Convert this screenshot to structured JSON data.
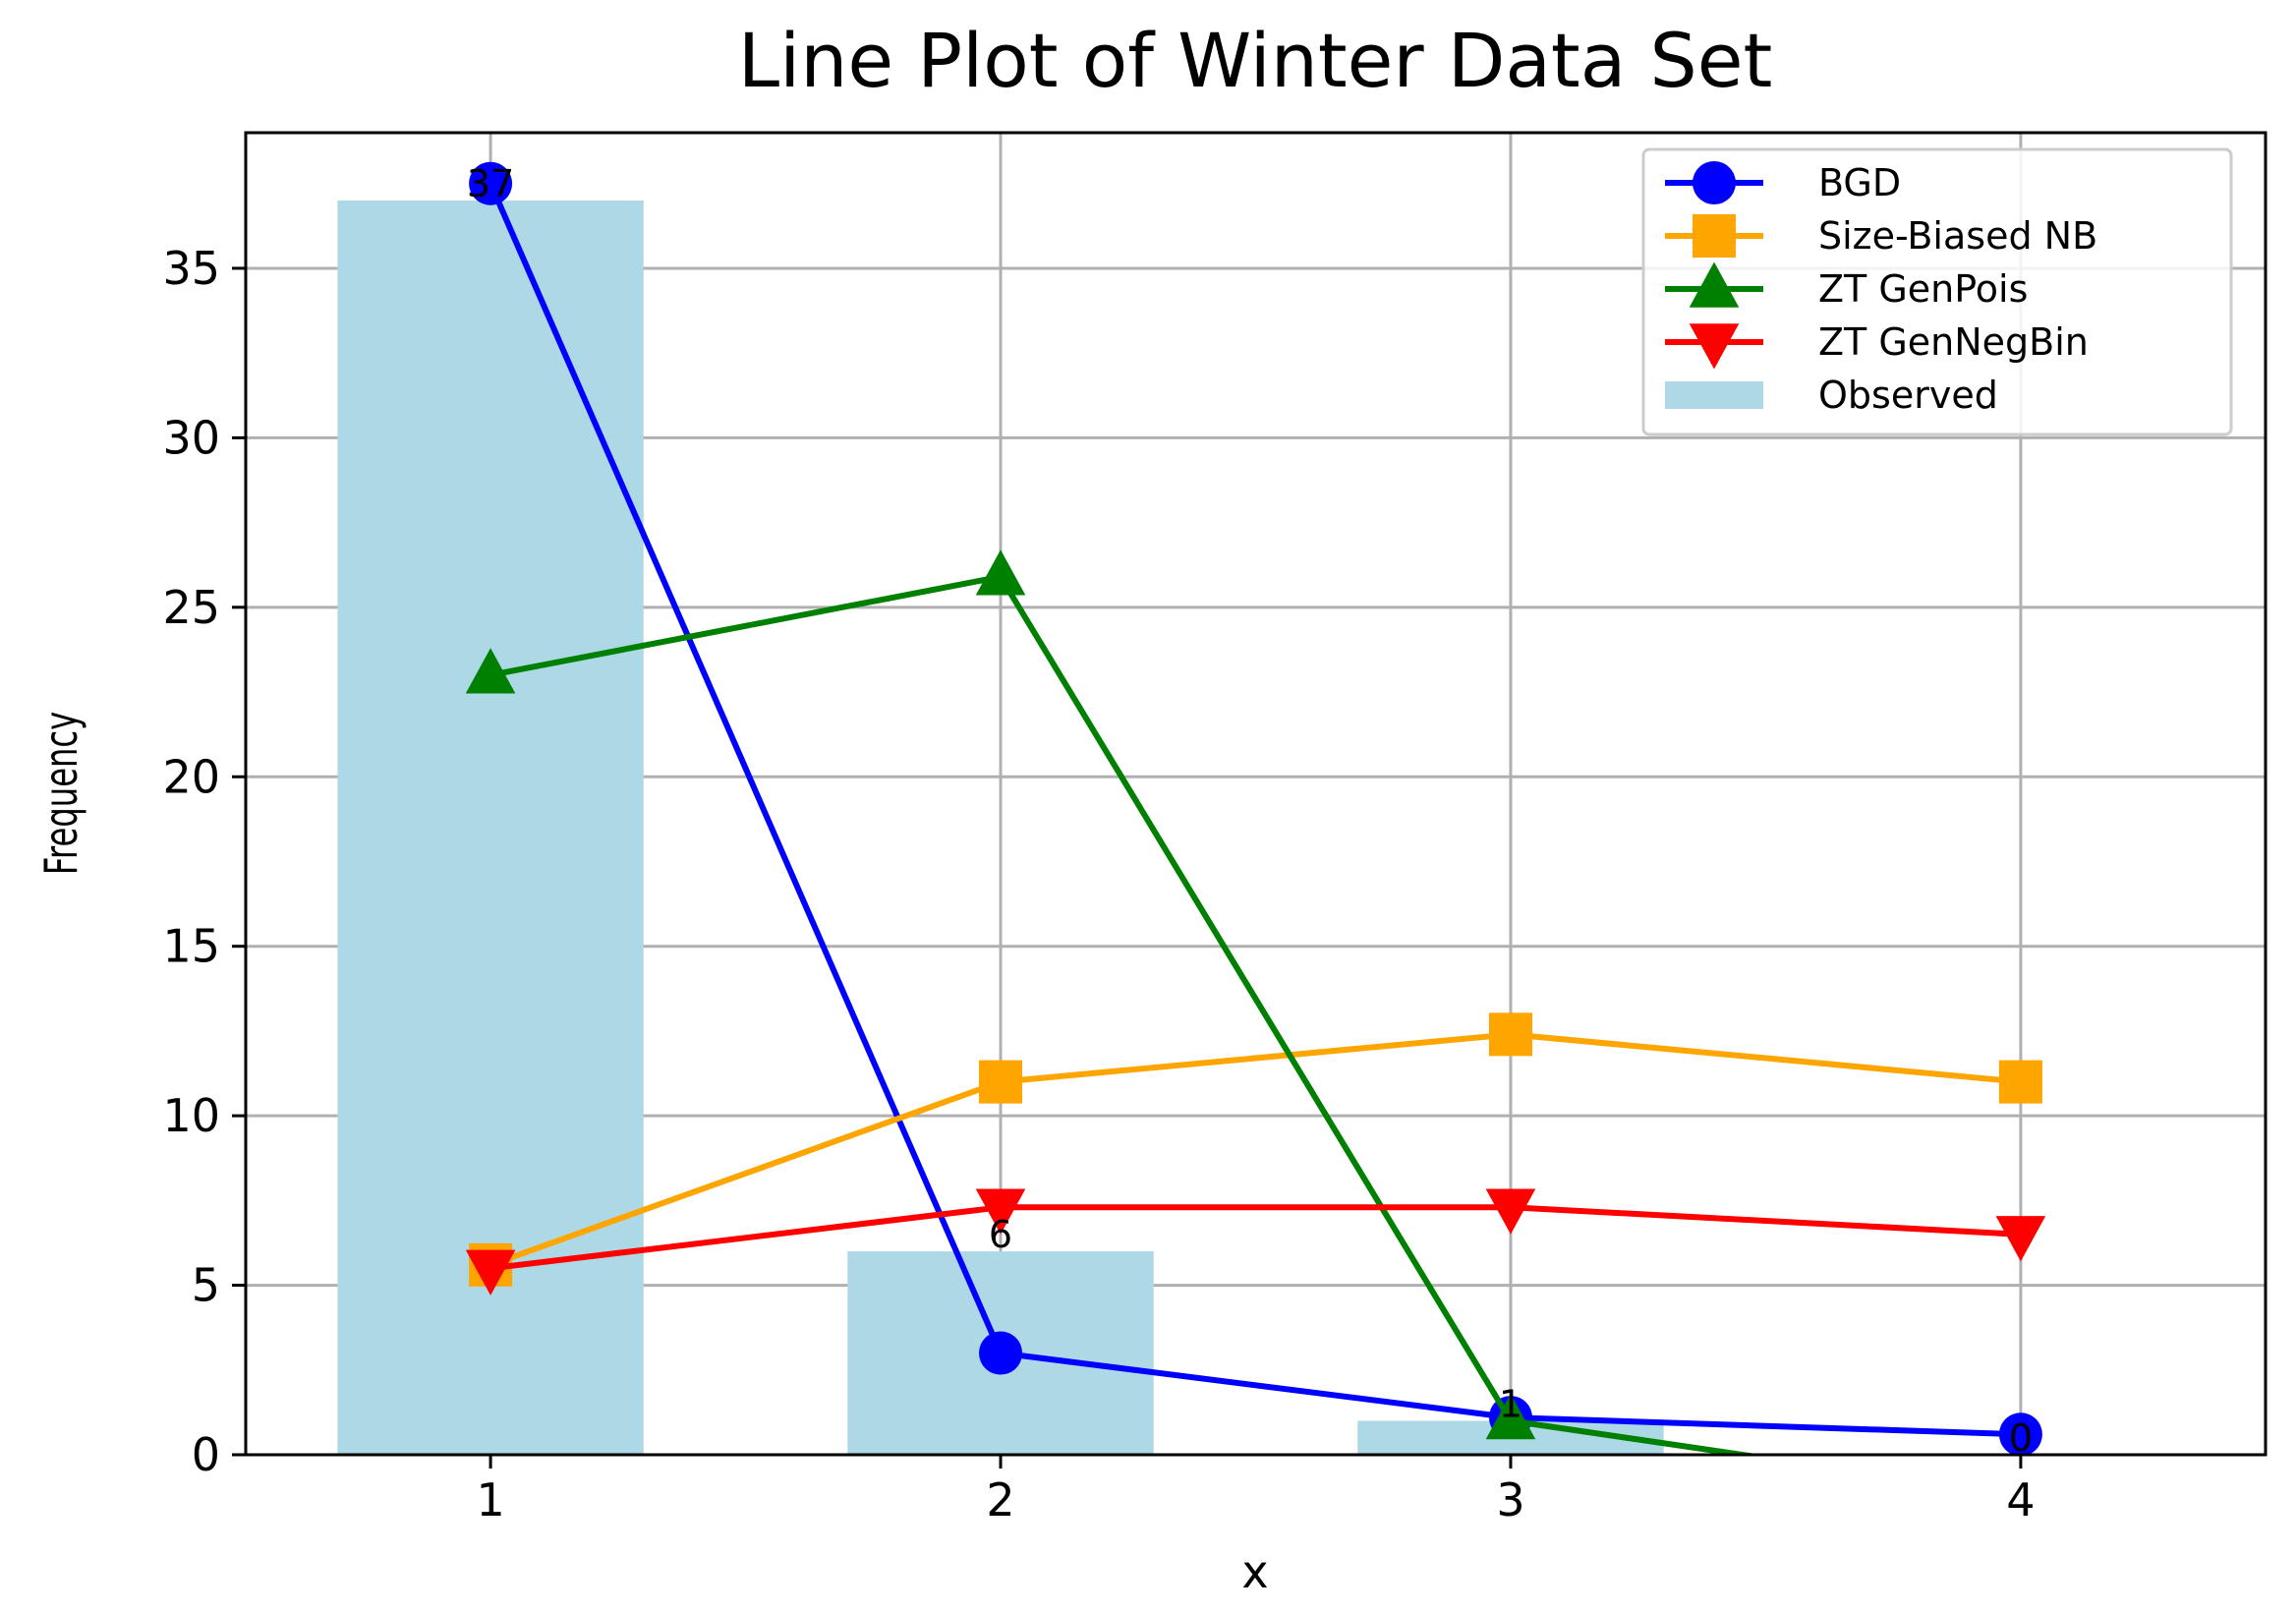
{
  "chart_data": {
    "type": "line",
    "title": "Line Plot of Winter Data Set",
    "xlabel": "x",
    "ylabel": "Frequency",
    "x": [
      1,
      2,
      3,
      4
    ],
    "xlim": [
      0.52,
      4.48
    ],
    "ylim": [
      0,
      39
    ],
    "x_ticks": [
      1,
      2,
      3,
      4
    ],
    "y_ticks": [
      0,
      5,
      10,
      15,
      20,
      25,
      30,
      35
    ],
    "grid": true,
    "legend_position": "top-right",
    "observed": {
      "name": "Observed",
      "type": "bar",
      "color": "#add8e6",
      "values": [
        37,
        6,
        1,
        0
      ],
      "labels": [
        "37",
        "6",
        "1",
        "0"
      ]
    },
    "series": [
      {
        "name": "BGD",
        "color": "#0000ff",
        "marker": "circle",
        "values": [
          37.5,
          3.0,
          1.1,
          0.6
        ]
      },
      {
        "name": "Size-Biased NB",
        "color": "#ffa500",
        "marker": "square",
        "values": [
          5.6,
          11.0,
          12.4,
          11.0
        ]
      },
      {
        "name": "ZT GenPois",
        "color": "#008000",
        "marker": "triangle-up",
        "values": [
          23.0,
          25.9,
          1.0,
          -1.2
        ]
      },
      {
        "name": "ZT GenNegBin",
        "color": "#ff0000",
        "marker": "triangle-down",
        "values": [
          5.5,
          7.3,
          7.3,
          6.5
        ]
      }
    ]
  }
}
